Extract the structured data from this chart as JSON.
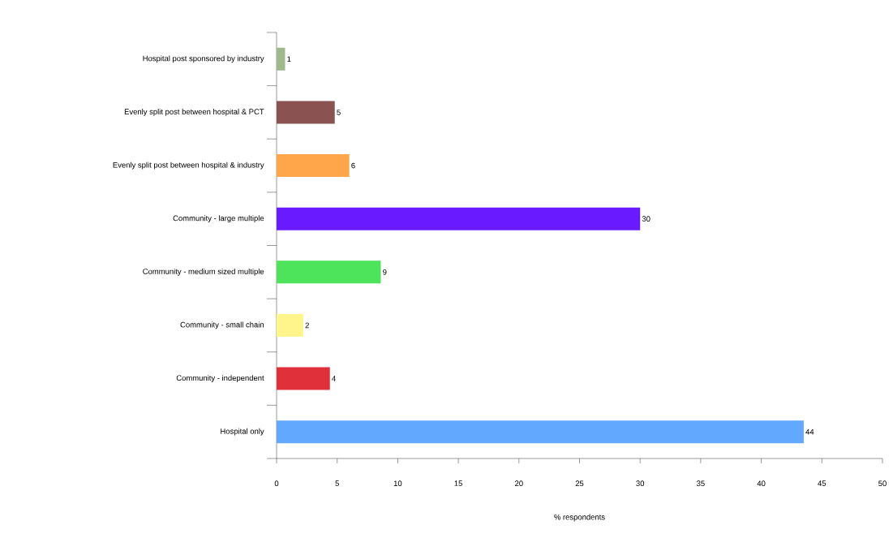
{
  "chart_data": {
    "type": "bar",
    "orientation": "horizontal",
    "xlabel": "% respondents",
    "categories": [
      "Hospital post sponsored by industry",
      "Evenly split post between hospital & PCT",
      "Evenly split post between hospital & industry",
      "Community - large multiple",
      "Community - medium sized multiple",
      "Community - small chain",
      "Community - independent",
      "Hospital only"
    ],
    "values": [
      0.7,
      4.8,
      6.0,
      30.0,
      8.6,
      2.2,
      4.4,
      43.5
    ],
    "value_labels": [
      "1",
      "5",
      "6",
      "30",
      "9",
      "2",
      "4",
      "44"
    ],
    "colors": [
      "#9fb88c",
      "#8b5252",
      "#ffa64a",
      "#6a1aff",
      "#4de35a",
      "#fff58a",
      "#e0303a",
      "#62a8ff"
    ],
    "xlim": [
      0,
      50
    ],
    "xticks": [
      0,
      5,
      10,
      15,
      20,
      25,
      30,
      35,
      40,
      45,
      50
    ],
    "grid": false
  }
}
